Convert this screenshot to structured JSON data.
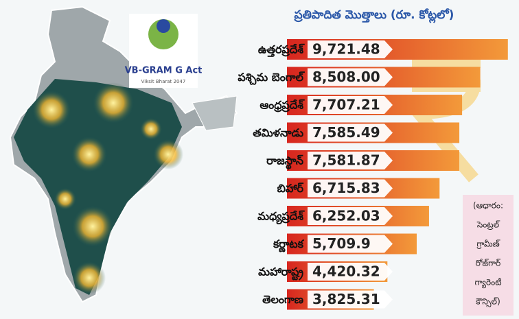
{
  "chart_data": {
    "type": "bar",
    "orientation": "horizontal",
    "title": "ప్రతిపాదిత మొత్తాలు (రూ. కోట్లలో)",
    "logo_text": "VB-GRAM G Act",
    "logo_subtext": "Viksit Bharat 2047",
    "categories": [
      "ఉత్తరప్రదేశ్",
      "పశ్చిమ బెంగాల్",
      "ఆంధ్రప్రదేశ్",
      "తమిళనాడు",
      "రాజస్థాన్",
      "బిహార్",
      "మధ్యప్రదేశ్",
      "కర్ణాటక",
      "మహారాష్ట్ర",
      "తెలంగాణ"
    ],
    "values": [
      9721.48,
      8508.0,
      7707.21,
      7585.49,
      7581.87,
      6715.83,
      6252.03,
      5709.9,
      4420.32,
      3825.31
    ],
    "value_labels": [
      "9,721.48",
      "8,508.00",
      "7,707.21",
      "7,585.49",
      "7,581.87",
      "6,715.83",
      "6,252.03",
      "5,709.9",
      "4,420.32",
      "3,825.31"
    ],
    "color": "#e8442a",
    "source_lines": [
      "(ఆధారం:",
      "సెంట్రల్",
      "గ్రామీణ్",
      "రోజ్‌గార్",
      "గ్యారెంటీ",
      "కౌన్సిల్)"
    ]
  }
}
